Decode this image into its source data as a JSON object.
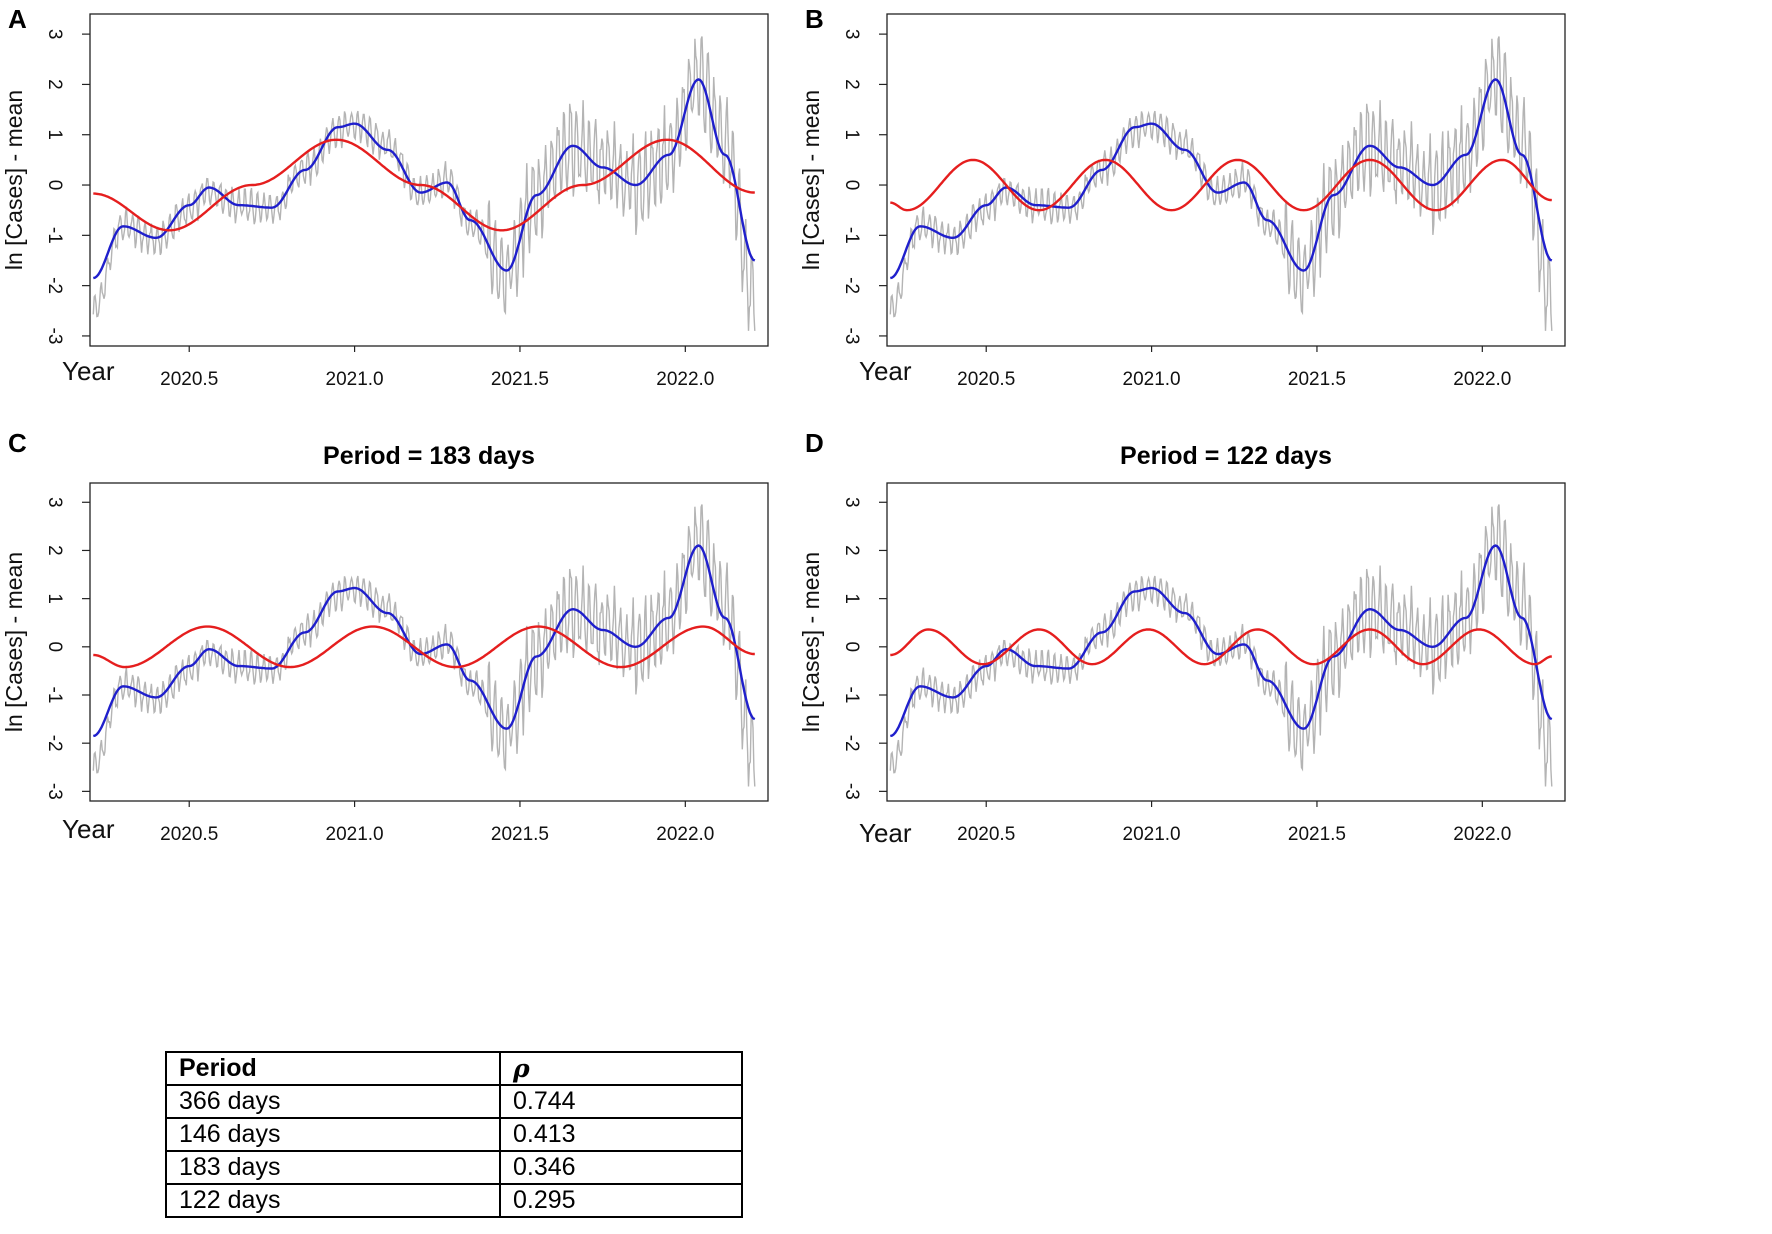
{
  "figure": {
    "panel_labels": [
      "A",
      "B",
      "C",
      "D"
    ]
  },
  "chart_data": [
    {
      "panel": "A",
      "type": "line",
      "title": "",
      "xlabel": "Year",
      "ylabel": "ln [Cases] - mean",
      "xlim": [
        2020.2,
        2022.25
      ],
      "ylim": [
        -3.2,
        3.4
      ],
      "xticks": [
        2020.5,
        2021.0,
        2021.5,
        2022.0
      ],
      "xtick_labels": [
        "2020.5",
        "2021.0",
        "2021.5",
        "2022.0"
      ],
      "yticks": [
        -3,
        -2,
        -1,
        0,
        1,
        2,
        3
      ],
      "ytick_labels": [
        "-3",
        "-2",
        "-1",
        "0",
        "1",
        "2",
        "3"
      ],
      "series": [
        {
          "name": "daily ln cases",
          "color": "#b4b4b4",
          "x": [
            2020.21,
            2020.3,
            2020.4,
            2020.5,
            2020.56,
            2020.65,
            2020.75,
            2020.85,
            2020.95,
            2021.0,
            2021.1,
            2021.2,
            2021.28,
            2021.35,
            2021.46,
            2021.55,
            2021.66,
            2021.75,
            2021.85,
            2021.95,
            2022.04,
            2022.12,
            2022.21
          ],
          "values": [
            -2.5,
            -0.8,
            -1.1,
            -0.5,
            -0.1,
            -0.4,
            -0.5,
            0.3,
            1.1,
            1.2,
            0.8,
            -0.2,
            0.1,
            -0.8,
            -1.7,
            -0.2,
            0.8,
            0.4,
            0.0,
            0.6,
            2.1,
            0.8,
            -2.3
          ]
        },
        {
          "name": "smoothed",
          "color": "#1f1fcc",
          "x": [
            2020.21,
            2020.3,
            2020.4,
            2020.5,
            2020.56,
            2020.65,
            2020.75,
            2020.85,
            2020.95,
            2021.0,
            2021.1,
            2021.2,
            2021.28,
            2021.35,
            2021.46,
            2021.55,
            2021.66,
            2021.75,
            2021.85,
            2021.95,
            2022.04,
            2022.12,
            2022.21
          ],
          "values": [
            -1.85,
            -0.82,
            -1.05,
            -0.4,
            -0.05,
            -0.4,
            -0.45,
            0.3,
            1.15,
            1.22,
            0.7,
            -0.15,
            0.05,
            -0.7,
            -1.7,
            -0.2,
            0.78,
            0.35,
            0.0,
            0.6,
            2.1,
            0.6,
            -1.5
          ]
        },
        {
          "name": "sinusoid fit (366 days)",
          "color": "#e51e1e",
          "period_days": 366,
          "amplitude": 0.9,
          "peak_at": 2020.945,
          "x": [
            2020.21,
            2020.44,
            2020.69,
            2020.945,
            2021.2,
            2021.445,
            2021.69,
            2021.945,
            2022.21
          ],
          "values": [
            -0.17,
            -0.9,
            0.0,
            0.9,
            0.0,
            -0.9,
            0.0,
            0.9,
            -0.15
          ]
        }
      ]
    },
    {
      "panel": "B",
      "type": "line",
      "title": "",
      "xlabel": "Year",
      "ylabel": "ln [Cases] - mean",
      "xlim": [
        2020.2,
        2022.25
      ],
      "ylim": [
        -3.2,
        3.4
      ],
      "xticks": [
        2020.5,
        2021.0,
        2021.5,
        2022.0
      ],
      "xtick_labels": [
        "2020.5",
        "2021.0",
        "2021.5",
        "2022.0"
      ],
      "yticks": [
        -3,
        -2,
        -1,
        0,
        1,
        2,
        3
      ],
      "ytick_labels": [
        "-3",
        "-2",
        "-1",
        "0",
        "1",
        "2",
        "3"
      ],
      "series": [
        {
          "name": "daily ln cases",
          "color": "#b4b4b4",
          "x": [
            2020.21,
            2020.3,
            2020.4,
            2020.5,
            2020.56,
            2020.65,
            2020.75,
            2020.85,
            2020.95,
            2021.0,
            2021.1,
            2021.2,
            2021.28,
            2021.35,
            2021.46,
            2021.55,
            2021.66,
            2021.75,
            2021.85,
            2021.95,
            2022.04,
            2022.12,
            2022.21
          ],
          "values": [
            -2.5,
            -0.8,
            -1.1,
            -0.5,
            -0.1,
            -0.4,
            -0.5,
            0.3,
            1.1,
            1.2,
            0.8,
            -0.2,
            0.1,
            -0.8,
            -1.7,
            -0.2,
            0.8,
            0.4,
            0.0,
            0.6,
            2.1,
            0.8,
            -2.3
          ]
        },
        {
          "name": "smoothed",
          "color": "#1f1fcc",
          "x": [
            2020.21,
            2020.3,
            2020.4,
            2020.5,
            2020.56,
            2020.65,
            2020.75,
            2020.85,
            2020.95,
            2021.0,
            2021.1,
            2021.2,
            2021.28,
            2021.35,
            2021.46,
            2021.55,
            2021.66,
            2021.75,
            2021.85,
            2021.95,
            2022.04,
            2022.12,
            2022.21
          ],
          "values": [
            -1.85,
            -0.82,
            -1.05,
            -0.4,
            -0.05,
            -0.4,
            -0.45,
            0.3,
            1.15,
            1.22,
            0.7,
            -0.15,
            0.05,
            -0.7,
            -1.7,
            -0.2,
            0.78,
            0.35,
            0.0,
            0.6,
            2.1,
            0.6,
            -1.5
          ]
        },
        {
          "name": "sinusoid fit (146 days)",
          "color": "#e51e1e",
          "period_days": 146,
          "amplitude": 0.5,
          "peak_at": 2020.46,
          "x": [
            2020.21,
            2020.26,
            2020.46,
            2020.66,
            2020.86,
            2021.06,
            2021.26,
            2021.46,
            2021.66,
            2021.86,
            2022.06,
            2022.21
          ],
          "values": [
            -0.35,
            -0.5,
            0.5,
            -0.5,
            0.5,
            -0.5,
            0.5,
            -0.5,
            0.5,
            -0.5,
            0.5,
            -0.3
          ]
        }
      ]
    },
    {
      "panel": "C",
      "type": "line",
      "title": "Period =  183  days",
      "xlabel": "Year",
      "ylabel": "ln [Cases] - mean",
      "xlim": [
        2020.2,
        2022.25
      ],
      "ylim": [
        -3.2,
        3.4
      ],
      "xticks": [
        2020.5,
        2021.0,
        2021.5,
        2022.0
      ],
      "xtick_labels": [
        "2020.5",
        "2021.0",
        "2021.5",
        "2022.0"
      ],
      "yticks": [
        -3,
        -2,
        -1,
        0,
        1,
        2,
        3
      ],
      "ytick_labels": [
        "-3",
        "-2",
        "-1",
        "0",
        "1",
        "2",
        "3"
      ],
      "series": [
        {
          "name": "daily ln cases",
          "color": "#b4b4b4",
          "x": [
            2020.21,
            2020.3,
            2020.4,
            2020.5,
            2020.56,
            2020.65,
            2020.75,
            2020.85,
            2020.95,
            2021.0,
            2021.1,
            2021.2,
            2021.28,
            2021.35,
            2021.46,
            2021.55,
            2021.66,
            2021.75,
            2021.85,
            2021.95,
            2022.04,
            2022.12,
            2022.21
          ],
          "values": [
            -2.5,
            -0.8,
            -1.1,
            -0.5,
            -0.1,
            -0.4,
            -0.5,
            0.3,
            1.1,
            1.2,
            0.8,
            -0.2,
            0.1,
            -0.8,
            -1.7,
            -0.2,
            0.8,
            0.4,
            0.0,
            0.6,
            2.1,
            0.8,
            -2.3
          ]
        },
        {
          "name": "smoothed",
          "color": "#1f1fcc",
          "x": [
            2020.21,
            2020.3,
            2020.4,
            2020.5,
            2020.56,
            2020.65,
            2020.75,
            2020.85,
            2020.95,
            2021.0,
            2021.1,
            2021.2,
            2021.28,
            2021.35,
            2021.46,
            2021.55,
            2021.66,
            2021.75,
            2021.85,
            2021.95,
            2022.04,
            2022.12,
            2022.21
          ],
          "values": [
            -1.85,
            -0.82,
            -1.05,
            -0.4,
            -0.05,
            -0.4,
            -0.45,
            0.3,
            1.15,
            1.22,
            0.7,
            -0.15,
            0.05,
            -0.7,
            -1.7,
            -0.2,
            0.78,
            0.35,
            0.0,
            0.6,
            2.1,
            0.6,
            -1.5
          ]
        },
        {
          "name": "sinusoid fit (183 days)",
          "color": "#e51e1e",
          "period_days": 183,
          "amplitude": 0.42,
          "peak_at": 2020.555,
          "x": [
            2020.21,
            2020.305,
            2020.555,
            2020.805,
            2021.055,
            2021.305,
            2021.555,
            2021.805,
            2022.055,
            2022.21
          ],
          "values": [
            -0.17,
            -0.42,
            0.42,
            -0.42,
            0.42,
            -0.42,
            0.42,
            -0.42,
            0.42,
            -0.15
          ]
        }
      ]
    },
    {
      "panel": "D",
      "type": "line",
      "title": "Period =  122  days",
      "xlabel": "Year",
      "ylabel": "ln [Cases] - mean",
      "xlim": [
        2020.2,
        2022.25
      ],
      "ylim": [
        -3.2,
        3.4
      ],
      "xticks": [
        2020.5,
        2021.0,
        2021.5,
        2022.0
      ],
      "xtick_labels": [
        "2020.5",
        "2021.0",
        "2021.5",
        "2022.0"
      ],
      "yticks": [
        -3,
        -2,
        -1,
        0,
        1,
        2,
        3
      ],
      "ytick_labels": [
        "-3",
        "-2",
        "-1",
        "0",
        "1",
        "2",
        "3"
      ],
      "series": [
        {
          "name": "daily ln cases",
          "color": "#b4b4b4",
          "x": [
            2020.21,
            2020.3,
            2020.4,
            2020.5,
            2020.56,
            2020.65,
            2020.75,
            2020.85,
            2020.95,
            2021.0,
            2021.1,
            2021.2,
            2021.28,
            2021.35,
            2021.46,
            2021.55,
            2021.66,
            2021.75,
            2021.85,
            2021.95,
            2022.04,
            2022.12,
            2022.21
          ],
          "values": [
            -2.5,
            -0.8,
            -1.1,
            -0.5,
            -0.1,
            -0.4,
            -0.5,
            0.3,
            1.1,
            1.2,
            0.8,
            -0.2,
            0.1,
            -0.8,
            -1.7,
            -0.2,
            0.8,
            0.4,
            0.0,
            0.6,
            2.1,
            0.8,
            -2.3
          ]
        },
        {
          "name": "smoothed",
          "color": "#1f1fcc",
          "x": [
            2020.21,
            2020.3,
            2020.4,
            2020.5,
            2020.56,
            2020.65,
            2020.75,
            2020.85,
            2020.95,
            2021.0,
            2021.1,
            2021.2,
            2021.28,
            2021.35,
            2021.46,
            2021.55,
            2021.66,
            2021.75,
            2021.85,
            2021.95,
            2022.04,
            2022.12,
            2022.21
          ],
          "values": [
            -1.85,
            -0.82,
            -1.05,
            -0.4,
            -0.05,
            -0.4,
            -0.45,
            0.3,
            1.15,
            1.22,
            0.7,
            -0.15,
            0.05,
            -0.7,
            -1.7,
            -0.2,
            0.78,
            0.35,
            0.0,
            0.6,
            2.1,
            0.6,
            -1.5
          ]
        },
        {
          "name": "sinusoid fit (122 days)",
          "color": "#e51e1e",
          "period_days": 122,
          "amplitude": 0.36,
          "peak_at": 2020.325,
          "x": [
            2020.21,
            2020.325,
            2020.49,
            2020.66,
            2020.82,
            2020.99,
            2021.16,
            2021.32,
            2021.49,
            2021.66,
            2021.82,
            2021.99,
            2022.16,
            2022.21
          ],
          "values": [
            -0.17,
            0.36,
            -0.36,
            0.36,
            -0.36,
            0.36,
            -0.36,
            0.36,
            -0.36,
            0.36,
            -0.36,
            0.36,
            -0.36,
            -0.2
          ]
        }
      ]
    },
    {
      "type": "table",
      "headers": [
        "Period",
        "ρ"
      ],
      "rows": [
        [
          "366 days",
          "0.744"
        ],
        [
          "146 days",
          "0.413"
        ],
        [
          "183 days",
          "0.346"
        ],
        [
          "122 days",
          "0.295"
        ]
      ]
    }
  ]
}
